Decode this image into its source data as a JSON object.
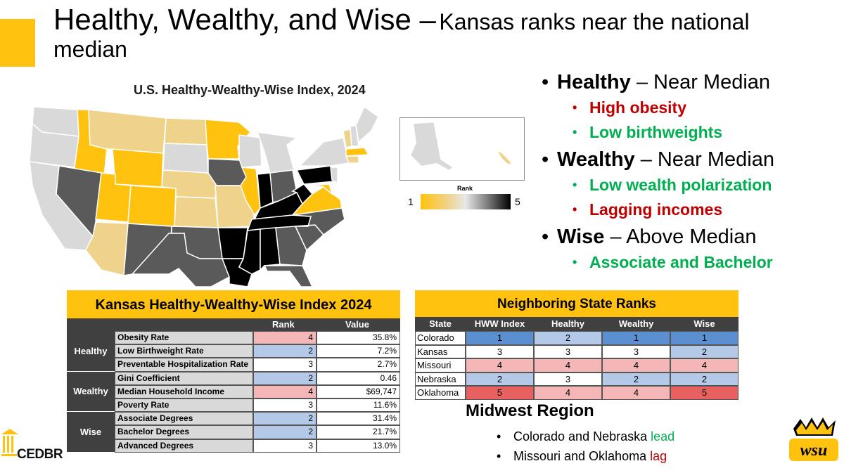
{
  "title": {
    "main": "Healthy, Wealthy, and Wise –",
    "sub": "Kansas ranks near the national median"
  },
  "colors": {
    "accent": "#FFC20E",
    "red": "#C00000",
    "green": "#00B050",
    "header_dark": "#404040"
  },
  "map": {
    "title": "U.S. Healthy-Wealthy-Wise Index, 2024",
    "legend": {
      "title": "Rank",
      "min": "1",
      "max": "5"
    }
  },
  "bullets": [
    {
      "head": "Healthy",
      "tail": "– Near Median",
      "subs": [
        {
          "text": "High obesity",
          "tone": "red"
        },
        {
          "text": "Low birthweights",
          "tone": "green"
        }
      ]
    },
    {
      "head": "Wealthy",
      "tail": "– Near Median",
      "subs": [
        {
          "text": "Low wealth polarization",
          "tone": "green"
        },
        {
          "text": "Lagging incomes",
          "tone": "red"
        }
      ]
    },
    {
      "head": "Wise",
      "tail": "– Above Median",
      "subs": [
        {
          "text": "Associate and Bachelor",
          "tone": "green"
        }
      ]
    }
  ],
  "kansas_table": {
    "title": "Kansas Healthy-Wealthy-Wise Index 2024",
    "col_rank": "Rank",
    "col_value": "Value",
    "groups": [
      {
        "name": "Healthy",
        "rows": [
          {
            "metric": "Obesity Rate",
            "rank": "4",
            "value": "35.8%"
          },
          {
            "metric": "Low Birthweight Rate",
            "rank": "2",
            "value": "7.2%"
          },
          {
            "metric": "Preventable Hospitalization Rate",
            "rank": "3",
            "value": "2.7%"
          }
        ]
      },
      {
        "name": "Wealthy",
        "rows": [
          {
            "metric": "Gini Coefficient",
            "rank": "2",
            "value": "0.46"
          },
          {
            "metric": "Median Household Income",
            "rank": "4",
            "value": "$69,747"
          },
          {
            "metric": "Poverty Rate",
            "rank": "3",
            "value": "11.6%"
          }
        ]
      },
      {
        "name": "Wise",
        "rows": [
          {
            "metric": "Associate Degrees",
            "rank": "2",
            "value": "31.4%"
          },
          {
            "metric": "Bachelor Degrees",
            "rank": "2",
            "value": "21.7%"
          },
          {
            "metric": "Advanced Degrees",
            "rank": "3",
            "value": "13.0%"
          }
        ]
      }
    ]
  },
  "neighbor_table": {
    "title": "Neighboring State Ranks",
    "headers": [
      "State",
      "HWW Index",
      "Healthy",
      "Wealthy",
      "Wise"
    ],
    "rows": [
      {
        "state": "Colorado",
        "ranks": [
          "1",
          "2",
          "1",
          "1"
        ]
      },
      {
        "state": "Kansas",
        "ranks": [
          "3",
          "3",
          "3",
          "2"
        ]
      },
      {
        "state": "Missouri",
        "ranks": [
          "4",
          "4",
          "4",
          "4"
        ]
      },
      {
        "state": "Nebraska",
        "ranks": [
          "2",
          "3",
          "2",
          "2"
        ]
      },
      {
        "state": "Oklahoma",
        "ranks": [
          "5",
          "4",
          "4",
          "5"
        ]
      }
    ]
  },
  "midwest": {
    "title": "Midwest Region",
    "items": [
      {
        "text": "Colorado and Nebraska",
        "tag": "lead",
        "tone": "green"
      },
      {
        "text": "Missouri and Oklahoma",
        "tag": "lag",
        "tone": "red"
      }
    ]
  },
  "logos": {
    "left": "CEDBR",
    "right": "WSU"
  }
}
